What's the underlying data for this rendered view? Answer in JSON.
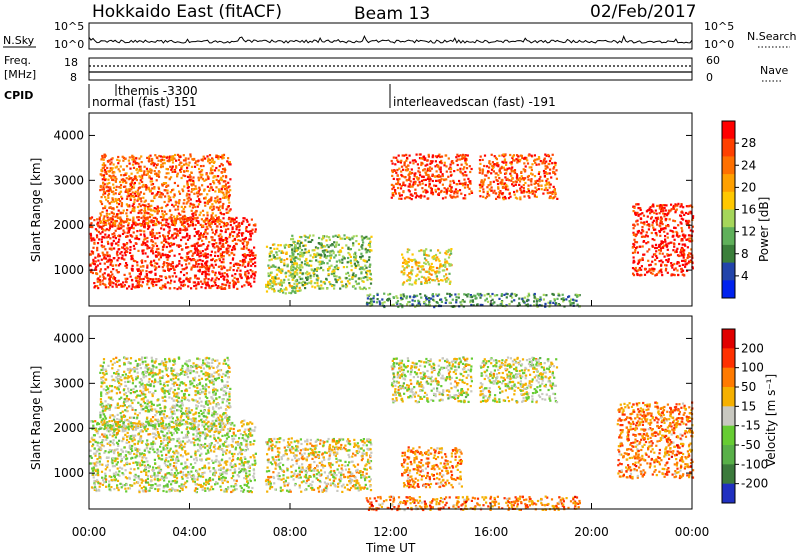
{
  "header": {
    "title": "Hokkaido East (fitACF)",
    "beam": "Beam 13",
    "date": "02/Feb/2017"
  },
  "top_panel": {
    "left_label": "N.Sky",
    "right_label": "N.Search",
    "left_ticks": [
      "10^5",
      "10^0"
    ],
    "right_ticks": [
      "10^5",
      "10^0"
    ]
  },
  "freq_panel": {
    "label_line1": "Freq.",
    "label_line2": "[MHz]",
    "left_ticks": [
      "18",
      "8"
    ],
    "right_ticks": [
      "60",
      "0"
    ],
    "right_label": "Nave"
  },
  "cpid_panel": {
    "label": "CPID",
    "programs": [
      {
        "text": "themis -3300",
        "start_hour": 1.05
      },
      {
        "text": "normal (fast) 151",
        "start_hour": 0.0
      },
      {
        "text": "interleavedscan (fast) -191",
        "start_hour": 12.0
      }
    ]
  },
  "x_axis": {
    "label": "Time UT",
    "ticks": [
      "00:00",
      "04:00",
      "08:00",
      "12:00",
      "16:00",
      "20:00",
      "00:00"
    ]
  },
  "chart_data": [
    {
      "type": "heatmap",
      "title": "",
      "xlabel": "Time UT",
      "ylabel": "Slant Range [km]",
      "xlim": [
        0,
        24
      ],
      "ylim": [
        200,
        4500
      ],
      "y_ticks": [
        "1000",
        "2000",
        "3000",
        "4000"
      ],
      "colorbar": {
        "label": "Power [dB]",
        "range": [
          0,
          32
        ],
        "ticks": [
          "28",
          "24",
          "20",
          "16",
          "12",
          "8",
          "4"
        ],
        "colors": [
          "#0022ee",
          "#2244aa",
          "#3a7f3a",
          "#5fb05a",
          "#a5d65a",
          "#ffc800",
          "#ffa000",
          "#ff7000",
          "#ff4000",
          "#ff0000"
        ]
      },
      "regions": [
        {
          "t": [
            0.0,
            6.6
          ],
          "r": [
            600,
            2200
          ],
          "level": 0.92
        },
        {
          "t": [
            0.4,
            5.6
          ],
          "r": [
            2000,
            3600
          ],
          "level": 0.78
        },
        {
          "t": [
            7.0,
            8.4
          ],
          "r": [
            500,
            1600
          ],
          "level": 0.45
        },
        {
          "t": [
            8.0,
            11.2
          ],
          "r": [
            600,
            1800
          ],
          "level": 0.4
        },
        {
          "t": [
            12.0,
            15.2
          ],
          "r": [
            2600,
            3600
          ],
          "level": 0.86
        },
        {
          "t": [
            15.5,
            18.6
          ],
          "r": [
            2600,
            3600
          ],
          "level": 0.82
        },
        {
          "t": [
            12.4,
            14.4
          ],
          "r": [
            700,
            1500
          ],
          "level": 0.55
        },
        {
          "t": [
            21.6,
            24.0
          ],
          "r": [
            900,
            2500
          ],
          "level": 0.92
        },
        {
          "t": [
            11.0,
            19.5
          ],
          "r": [
            200,
            500
          ],
          "level": 0.3
        }
      ]
    },
    {
      "type": "heatmap",
      "title": "",
      "xlabel": "Time UT",
      "ylabel": "Slant Range [km]",
      "xlim": [
        0,
        24
      ],
      "ylim": [
        200,
        4500
      ],
      "y_ticks": [
        "1000",
        "2000",
        "3000",
        "4000"
      ],
      "colorbar": {
        "label": "Velocity [m s⁻¹]",
        "range": [
          -250,
          250
        ],
        "ticks": [
          "200",
          "100",
          "50",
          "15",
          "-15",
          "-50",
          "-100",
          "-200"
        ],
        "colors": [
          "#2030c0",
          "#3b7a3b",
          "#58b048",
          "#66cc33",
          "#c8c8c0",
          "#f5b000",
          "#ff7a00",
          "#ff3000",
          "#e00000"
        ]
      },
      "regions": [
        {
          "t": [
            0.0,
            6.6
          ],
          "r": [
            600,
            2200
          ],
          "level": 0.5
        },
        {
          "t": [
            0.4,
            5.6
          ],
          "r": [
            2000,
            3600
          ],
          "level": 0.5
        },
        {
          "t": [
            7.0,
            11.2
          ],
          "r": [
            600,
            1800
          ],
          "level": 0.55
        },
        {
          "t": [
            12.0,
            15.2
          ],
          "r": [
            2600,
            3600
          ],
          "level": 0.5
        },
        {
          "t": [
            15.5,
            18.6
          ],
          "r": [
            2600,
            3600
          ],
          "level": 0.5
        },
        {
          "t": [
            12.4,
            14.8
          ],
          "r": [
            700,
            1600
          ],
          "level": 0.7
        },
        {
          "t": [
            21.0,
            24.0
          ],
          "r": [
            900,
            2600
          ],
          "level": 0.72
        },
        {
          "t": [
            11.0,
            19.5
          ],
          "r": [
            200,
            500
          ],
          "level": 0.72
        }
      ]
    }
  ]
}
